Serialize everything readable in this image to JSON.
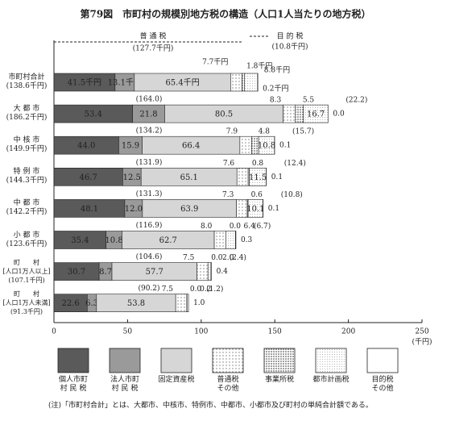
{
  "chart_data": {
    "type": "stacked-bar-horizontal",
    "title": "第79図　市町村の規模別地方税の構造（人口1人当たりの地方税）",
    "header_normal": "普 通 税",
    "header_normal_total": "(127.7千円)",
    "header_purpose": "目 的 税",
    "header_purpose_total": "(10.8千円)",
    "categories": [
      "市町村合計\n(138.6千円)",
      "大 都 市\n(186.2千円)",
      "中 核 市\n(149.9千円)",
      "特 例 市\n(144.3千円)",
      "中 都 市\n(142.2千円)",
      "小 都 市\n(123.6千円)",
      "町　　村\n[人口1万人以上]\n(107.1千円)",
      "町　　村\n[人口1万人未満]\n(91.3千円)"
    ],
    "normal_totals": [
      null,
      "(164.0)",
      "(134.2)",
      "(131.9)",
      "(131.3)",
      "(116.9)",
      "(104.6)",
      "(90.2)"
    ],
    "purpose_totals": [
      null,
      "(22.2)",
      "(15.7)",
      "(12.4)",
      "(10.8)",
      "(6.7)",
      "(2.4)",
      "(1.2)"
    ],
    "series": [
      {
        "name": "個人市町\n村 民 税",
        "color": "#5a5a5a",
        "pattern": "solid",
        "values": [
          41.5,
          53.4,
          44.0,
          46.7,
          48.1,
          35.4,
          30.7,
          22.6
        ],
        "value_labels": [
          "41.5千円",
          "53.4",
          "44.0",
          "46.7",
          "48.1",
          "35.4",
          "30.7",
          "22.6"
        ]
      },
      {
        "name": "法人市町\n村 民 税",
        "color": "#9a9a9a",
        "pattern": "solid",
        "values": [
          13.1,
          21.8,
          15.9,
          12.5,
          12.0,
          10.8,
          8.7,
          6.3
        ],
        "value_labels": [
          "13.1千円",
          "21.8",
          "15.9",
          "12.5",
          "12.0",
          "10.8",
          "8.7",
          "6.3"
        ]
      },
      {
        "name": "固定資産税",
        "color": "#d6d6d6",
        "pattern": "solid",
        "values": [
          65.4,
          80.5,
          66.4,
          65.1,
          63.9,
          62.7,
          57.7,
          53.8
        ],
        "value_labels": [
          "65.4千円",
          "80.5",
          "66.4",
          "65.1",
          "63.9",
          "62.7",
          "57.7",
          "53.8"
        ]
      },
      {
        "name": "普通税\nその他",
        "color": "#ffffff",
        "pattern": "dots-sparse",
        "values": [
          7.7,
          8.3,
          7.9,
          7.6,
          7.3,
          8.0,
          7.5,
          7.5
        ],
        "value_labels": [
          "7.7千円",
          "8.3",
          "7.9",
          "7.6",
          "7.3",
          "8.0",
          "7.5",
          "7.5"
        ]
      },
      {
        "name": "事業所税",
        "color": "#ffffff",
        "pattern": "dots-dense",
        "values": [
          1.8,
          5.5,
          4.8,
          0.8,
          0.6,
          0,
          0,
          0
        ],
        "value_labels": [
          "1.8千円",
          "5.5",
          "4.8",
          "0.8",
          "0.6",
          "0.0",
          "0.0",
          "0.0"
        ]
      },
      {
        "name": "都市計画税",
        "color": "#ffffff",
        "pattern": "dots-fine",
        "values": [
          8.8,
          16.7,
          10.8,
          11.5,
          10.1,
          6.4,
          2.0,
          0.2
        ],
        "value_labels": [
          "8.8千円",
          "16.7",
          "10.8",
          "11.5",
          "10.1",
          "6.4",
          "2.0",
          "0.2"
        ]
      },
      {
        "name": "目的税\nその他",
        "color": "#ffffff",
        "pattern": "solid",
        "values": [
          0.2,
          0,
          0.1,
          0.1,
          0.1,
          0.3,
          0.4,
          1.0
        ],
        "value_labels": [
          "0.2千円",
          "0.0",
          "0.1",
          "0.1",
          "0.1",
          "0.3",
          "0.4",
          "1.0"
        ]
      }
    ],
    "xlim": [
      0,
      250
    ],
    "xticks": [
      0,
      50,
      100,
      150,
      200,
      250
    ],
    "x_unit": "(千円)",
    "note": "(注)「市町村合計」とは、大都市、中核市、特例市、中都市、小都市及び町村の単純合計額である。"
  }
}
